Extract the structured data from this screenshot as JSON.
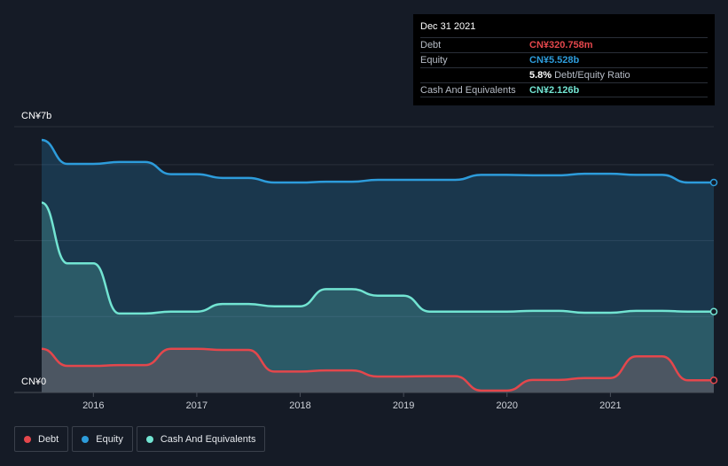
{
  "tooltip": {
    "date": "Dec 31 2021",
    "debt_label": "Debt",
    "debt_value": "CN¥320.758m",
    "equity_label": "Equity",
    "equity_value": "CN¥5.528b",
    "ratio_value": "5.8%",
    "ratio_suffix": "Debt/Equity Ratio",
    "cash_label": "Cash And Equivalents",
    "cash_value": "CN¥2.126b"
  },
  "colors": {
    "debt": "#e4474c",
    "equity": "#2d9cdb",
    "cash": "#72e4d2",
    "background": "#151b26"
  },
  "legend": [
    {
      "label": "Debt",
      "color": "#e4474c"
    },
    {
      "label": "Equity",
      "color": "#2d9cdb"
    },
    {
      "label": "Cash And Equivalents",
      "color": "#72e4d2"
    }
  ],
  "chart_data": {
    "type": "area",
    "y_axis_labels": [
      "CN¥7b",
      "CN¥0"
    ],
    "ylim": [
      0,
      7
    ],
    "xlim": [
      2015.5,
      2022.0
    ],
    "x_ticks": [
      2016,
      2017,
      2018,
      2019,
      2020,
      2021
    ],
    "x_tick_labels": [
      "2016",
      "2017",
      "2018",
      "2019",
      "2020",
      "2021"
    ],
    "grid": true,
    "legend_position": "bottom-left",
    "series": [
      {
        "name": "Equity",
        "color": "#2d9cdb",
        "x": [
          2015.5,
          2015.75,
          2016.0,
          2016.25,
          2016.5,
          2016.75,
          2017.0,
          2017.25,
          2017.5,
          2017.75,
          2018.0,
          2018.25,
          2018.5,
          2018.75,
          2019.0,
          2019.25,
          2019.5,
          2019.75,
          2020.0,
          2020.25,
          2020.5,
          2020.75,
          2021.0,
          2021.25,
          2021.5,
          2021.75,
          2022.0
        ],
        "values": [
          6.65,
          6.02,
          6.02,
          6.07,
          6.07,
          5.75,
          5.75,
          5.65,
          5.65,
          5.53,
          5.53,
          5.55,
          5.55,
          5.6,
          5.6,
          5.6,
          5.6,
          5.73,
          5.73,
          5.72,
          5.72,
          5.76,
          5.76,
          5.73,
          5.73,
          5.53,
          5.53
        ]
      },
      {
        "name": "Cash And Equivalents",
        "color": "#72e4d2",
        "x": [
          2015.5,
          2015.75,
          2016.0,
          2016.25,
          2016.5,
          2016.75,
          2017.0,
          2017.25,
          2017.5,
          2017.75,
          2018.0,
          2018.25,
          2018.5,
          2018.75,
          2019.0,
          2019.25,
          2019.5,
          2019.75,
          2020.0,
          2020.25,
          2020.5,
          2020.75,
          2021.0,
          2021.25,
          2021.5,
          2021.75,
          2022.0
        ],
        "values": [
          5.0,
          3.4,
          3.4,
          2.08,
          2.08,
          2.13,
          2.13,
          2.33,
          2.33,
          2.27,
          2.27,
          2.72,
          2.72,
          2.55,
          2.55,
          2.13,
          2.13,
          2.13,
          2.13,
          2.15,
          2.15,
          2.1,
          2.1,
          2.15,
          2.15,
          2.13,
          2.13
        ]
      },
      {
        "name": "Debt",
        "color": "#e4474c",
        "x": [
          2015.5,
          2015.75,
          2016.0,
          2016.25,
          2016.5,
          2016.75,
          2017.0,
          2017.25,
          2017.5,
          2017.75,
          2018.0,
          2018.25,
          2018.5,
          2018.75,
          2019.0,
          2019.25,
          2019.5,
          2019.75,
          2020.0,
          2020.25,
          2020.5,
          2020.75,
          2021.0,
          2021.25,
          2021.5,
          2021.75,
          2022.0
        ],
        "values": [
          1.15,
          0.7,
          0.7,
          0.72,
          0.72,
          1.15,
          1.15,
          1.12,
          1.12,
          0.55,
          0.55,
          0.58,
          0.58,
          0.42,
          0.42,
          0.43,
          0.43,
          0.05,
          0.05,
          0.33,
          0.33,
          0.38,
          0.38,
          0.95,
          0.95,
          0.32,
          0.32
        ]
      }
    ]
  }
}
